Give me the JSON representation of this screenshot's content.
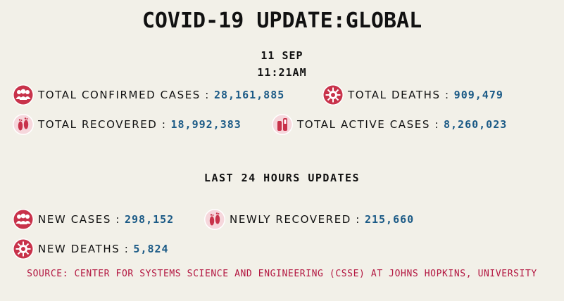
{
  "title": "COVID-19 UPDATE:GLOBAL",
  "date": "11 SEP",
  "time": "11:21AM",
  "stats": {
    "confirmed": {
      "label": "TOTAL CONFIRMED CASES :",
      "value": "28,161,885",
      "icon": "people-group-icon"
    },
    "deaths": {
      "label": "TOTAL DEATHS :",
      "value": "909,479",
      "icon": "virus-icon"
    },
    "recovered": {
      "label": "TOTAL RECOVERED :",
      "value": "18,992,383",
      "icon": "footprints-icon"
    },
    "active": {
      "label": "TOTAL ACTIVE CASES :",
      "value": "8,260,023",
      "icon": "test-tubes-icon"
    }
  },
  "last24": {
    "heading": "LAST 24 HOURS UPDATES",
    "new_cases": {
      "label": "NEW CASES :",
      "value": "298,152",
      "icon": "people-group-icon"
    },
    "newly_recovered": {
      "label": "NEWLY RECOVERED :",
      "value": "215,660",
      "icon": "footprints-icon"
    },
    "new_deaths": {
      "label": "NEW DEATHS :",
      "value": "5,824",
      "icon": "virus-icon"
    }
  },
  "source": "SOURCE: CENTER FOR SYSTEMS SCIENCE AND ENGINEERING (CSSE) AT JOHNS HOPKINS, UNIVERSITY",
  "colors": {
    "background": "#f2f0e8",
    "value": "#1b5a86",
    "icon_red": "#c8324a",
    "source": "#b31640"
  }
}
